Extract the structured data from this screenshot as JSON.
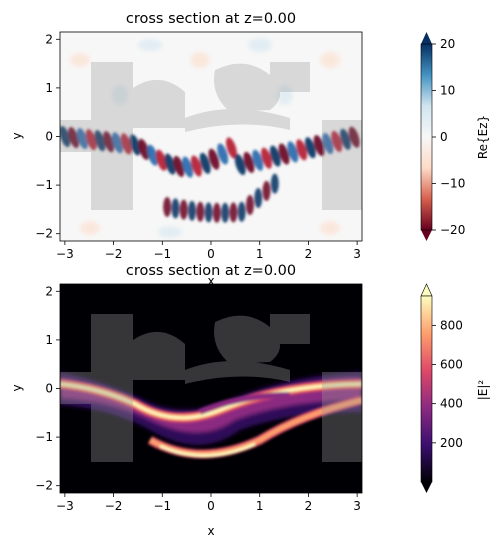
{
  "chart_data": [
    {
      "type": "heatmap",
      "title": "cross section at z=0.00",
      "xlabel": "x",
      "ylabel": "y",
      "xlim": [
        -3.1,
        3.1
      ],
      "ylim": [
        -2.15,
        2.15
      ],
      "xticks": [
        -3,
        -2,
        -1,
        0,
        1,
        2,
        3
      ],
      "yticks": [
        -2,
        -1,
        0,
        1,
        2
      ],
      "colorbar": {
        "label": "Re{Ez}",
        "ticks": [
          -20,
          -10,
          0,
          10,
          20
        ],
        "range": [
          -20,
          20
        ],
        "cmap": "RdBu",
        "extend": "both",
        "colors": [
          "#67001f",
          "#d6604d",
          "#fddbc7",
          "#f7f7f7",
          "#d1e5f0",
          "#4393c3",
          "#053061"
        ]
      }
    },
    {
      "type": "heatmap",
      "title": "cross section at z=0.00",
      "xlabel": "x",
      "ylabel": "y",
      "xlim": [
        -3.1,
        3.1
      ],
      "ylim": [
        -2.15,
        2.15
      ],
      "xticks": [
        -3,
        -2,
        -1,
        0,
        1,
        2,
        3
      ],
      "yticks": [
        -2,
        -1,
        0,
        1,
        2
      ],
      "colorbar": {
        "label": "|E|²",
        "ticks": [
          200,
          400,
          600,
          800
        ],
        "range": [
          0,
          950
        ],
        "cmap": "magma",
        "extend": "both",
        "colors": [
          "#000004",
          "#3b0f70",
          "#8c2981",
          "#de4968",
          "#fe9f6d",
          "#fcfdbf"
        ]
      }
    }
  ]
}
